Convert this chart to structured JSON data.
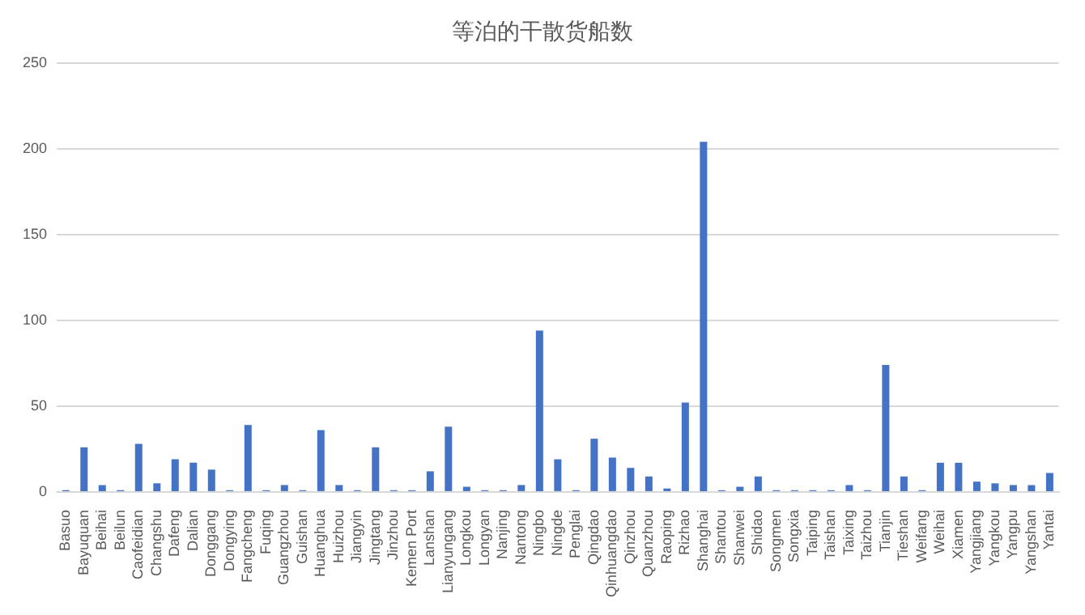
{
  "chart_data": {
    "type": "bar",
    "title": "等泊的干散货船数",
    "categories": [
      "Basuo",
      "Bayuquan",
      "Beihai",
      "Beilun",
      "Caofeidian",
      "Changshu",
      "Dafeng",
      "Dalian",
      "Donggang",
      "Dongying",
      "Fangcheng",
      "Fuqing",
      "Guangzhou",
      "Guishan",
      "Huanghua",
      "Huizhou",
      "Jiangyin",
      "Jingtang",
      "Jinzhou",
      "Kemen Port",
      "Lanshan",
      "Lianyungang",
      "Longkou",
      "Longyan",
      "Nanjing",
      "Nantong",
      "Ningbo",
      "Ningde",
      "Penglai",
      "Qingdao",
      "Qinhuangdao",
      "Qinzhou",
      "Quanzhou",
      "Raoping",
      "Rizhao",
      "Shanghai",
      "Shantou",
      "Shanwei",
      "Shidao",
      "Songmen",
      "Songxia",
      "Taiping",
      "Taishan",
      "Taixing",
      "Taizhou",
      "Tianjin",
      "Tieshan",
      "Weifang",
      "Weihai",
      "Xiamen",
      "Yangjiang",
      "Yangkou",
      "Yangpu",
      "Yangshan",
      "Yantai"
    ],
    "values": [
      1,
      26,
      4,
      1,
      28,
      5,
      19,
      17,
      13,
      1,
      39,
      1,
      4,
      1,
      36,
      4,
      1,
      26,
      1,
      1,
      12,
      38,
      3,
      1,
      1,
      4,
      94,
      19,
      1,
      31,
      20,
      14,
      9,
      2,
      52,
      204,
      1,
      3,
      9,
      1,
      1,
      1,
      1,
      4,
      1,
      74,
      9,
      1,
      17,
      17,
      6,
      5,
      4,
      4,
      11
    ],
    "color": "#4472c4",
    "ylim": [
      0,
      250
    ],
    "yticks": [
      0,
      50,
      100,
      150,
      200,
      250
    ],
    "grid": "y",
    "legend": false
  }
}
